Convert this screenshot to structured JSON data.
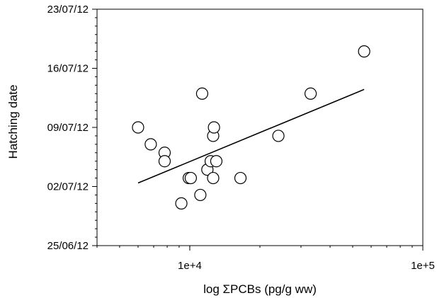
{
  "chart_data": {
    "type": "scatter",
    "title": "",
    "xlabel": "log ΣPCBs (pg/g ww)",
    "ylabel": "Hatching date",
    "x_scale": "log",
    "xlim": [
      4000,
      100000
    ],
    "x_ticks": [
      10000,
      100000
    ],
    "x_tick_labels": [
      "1e+4",
      "1e+5"
    ],
    "ylim": [
      "2012-06-25",
      "2012-07-23"
    ],
    "y_ticks": [
      "2012-06-25",
      "2012-07-02",
      "2012-07-09",
      "2012-07-16",
      "2012-07-23"
    ],
    "y_tick_labels": [
      "25/06/12",
      "02/07/12",
      "09/07/12",
      "16/07/12",
      "23/07/12"
    ],
    "grid": false,
    "legend": "none",
    "series": [
      {
        "marker": "open-circle",
        "points": [
          {
            "x": 6000,
            "y": "2012-07-09"
          },
          {
            "x": 6800,
            "y": "2012-07-07"
          },
          {
            "x": 7800,
            "y": "2012-07-06"
          },
          {
            "x": 7800,
            "y": "2012-07-05"
          },
          {
            "x": 9200,
            "y": "2012-06-30"
          },
          {
            "x": 9900,
            "y": "2012-07-03"
          },
          {
            "x": 10100,
            "y": "2012-07-03"
          },
          {
            "x": 11100,
            "y": "2012-07-01"
          },
          {
            "x": 11300,
            "y": "2012-07-13"
          },
          {
            "x": 11900,
            "y": "2012-07-04"
          },
          {
            "x": 12300,
            "y": "2012-07-05"
          },
          {
            "x": 12600,
            "y": "2012-07-03"
          },
          {
            "x": 12600,
            "y": "2012-07-08"
          },
          {
            "x": 12700,
            "y": "2012-07-09"
          },
          {
            "x": 13000,
            "y": "2012-07-05"
          },
          {
            "x": 16500,
            "y": "2012-07-03"
          },
          {
            "x": 24000,
            "y": "2012-07-08"
          },
          {
            "x": 33000,
            "y": "2012-07-13"
          },
          {
            "x": 56000,
            "y": "2012-07-18"
          }
        ]
      }
    ],
    "trendline": {
      "type": "linear",
      "points": [
        {
          "x": 6000,
          "y": "2012-07-02 10:00"
        },
        {
          "x": 56000,
          "y": "2012-07-13 12:00"
        }
      ]
    }
  }
}
